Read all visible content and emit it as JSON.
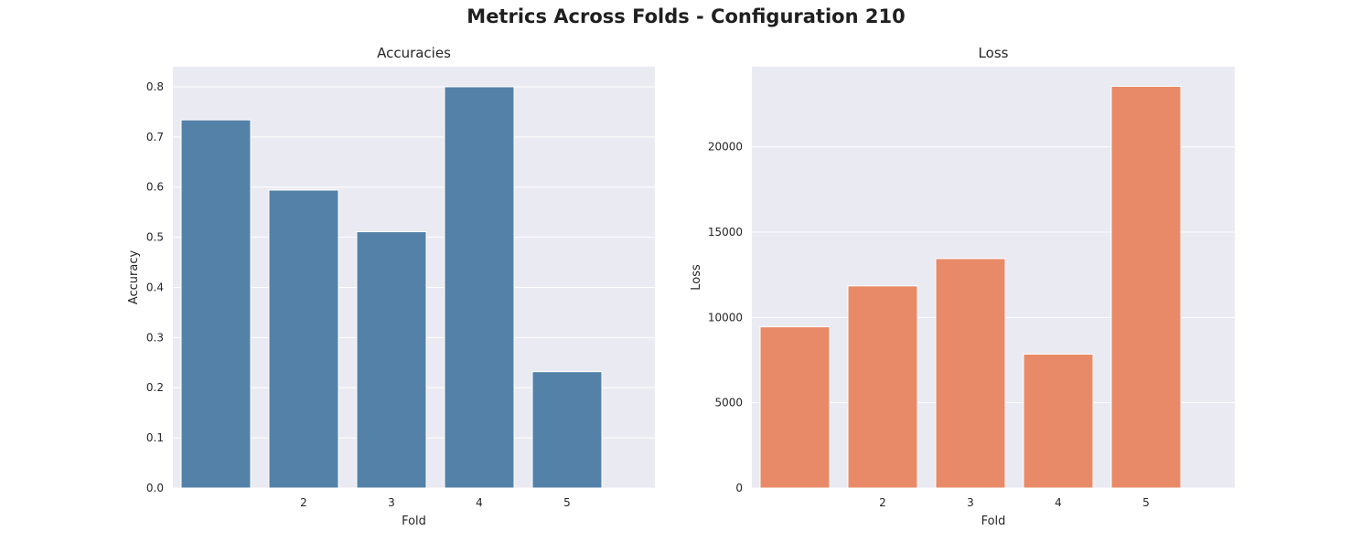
{
  "figure": {
    "title": "Metrics Across Folds - Configuration 210"
  },
  "chart_data": [
    {
      "type": "bar",
      "title": "Accuracies",
      "xlabel": "Fold",
      "ylabel": "Accuracy",
      "categories": [
        "",
        "2",
        "3",
        "4",
        "5"
      ],
      "values": [
        0.734,
        0.594,
        0.511,
        0.8,
        0.232
      ],
      "ylim": [
        0,
        0.84
      ],
      "yticks": [
        0.0,
        0.1,
        0.2,
        0.3,
        0.4,
        0.5,
        0.6,
        0.7,
        0.8
      ],
      "ytick_labels": [
        "0.0",
        "0.1",
        "0.2",
        "0.3",
        "0.4",
        "0.5",
        "0.6",
        "0.7",
        "0.8"
      ],
      "color": "#5381a8",
      "background": "#eaeaf2",
      "grid": true
    },
    {
      "type": "bar",
      "title": "Loss",
      "xlabel": "Fold",
      "ylabel": "Loss",
      "categories": [
        "",
        "2",
        "3",
        "4",
        "5"
      ],
      "values": [
        9450,
        11850,
        13450,
        7850,
        23550
      ],
      "ylim": [
        0,
        24700
      ],
      "yticks": [
        0,
        5000,
        10000,
        15000,
        20000
      ],
      "ytick_labels": [
        "0",
        "5000",
        "10000",
        "15000",
        "20000"
      ],
      "color": "#e88a67",
      "background": "#eaeaf2",
      "grid": true
    }
  ]
}
